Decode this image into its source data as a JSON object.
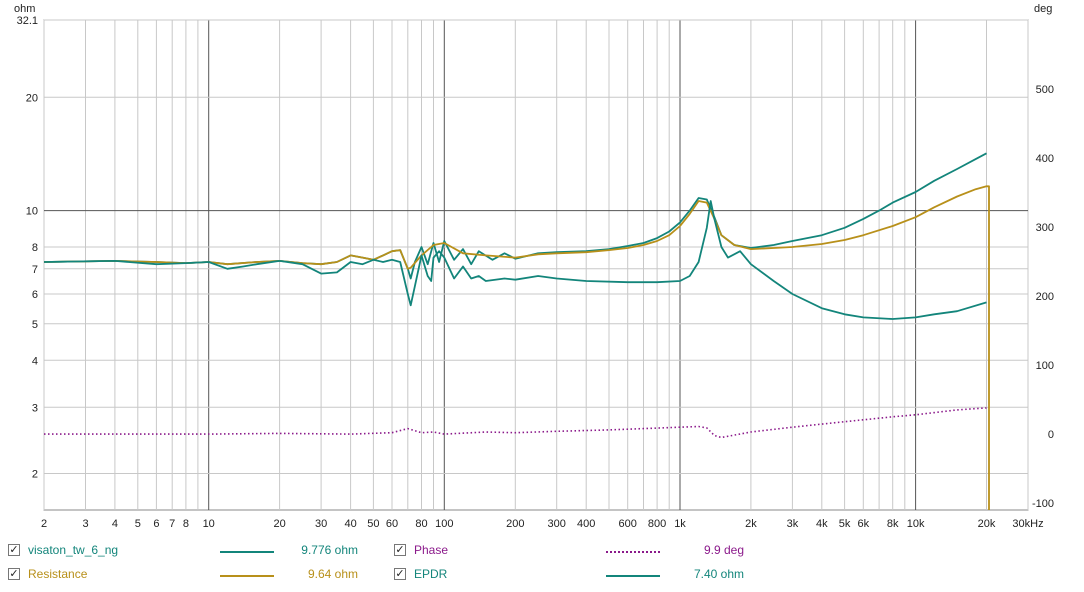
{
  "chart_data": {
    "type": "line",
    "x_scale": "log",
    "y_scale": "log",
    "x_ticks": [
      {
        "v": 2,
        "label": "2"
      },
      {
        "v": 3,
        "label": "3"
      },
      {
        "v": 4,
        "label": "4"
      },
      {
        "v": 5,
        "label": "5"
      },
      {
        "v": 6,
        "label": "6"
      },
      {
        "v": 7,
        "label": "7"
      },
      {
        "v": 8,
        "label": "8"
      },
      {
        "v": 10,
        "label": "10"
      },
      {
        "v": 20,
        "label": "20"
      },
      {
        "v": 30,
        "label": "30"
      },
      {
        "v": 40,
        "label": "40"
      },
      {
        "v": 50,
        "label": "50"
      },
      {
        "v": 60,
        "label": "60"
      },
      {
        "v": 80,
        "label": "80"
      },
      {
        "v": 100,
        "label": "100"
      },
      {
        "v": 200,
        "label": "200"
      },
      {
        "v": 300,
        "label": "300"
      },
      {
        "v": 400,
        "label": "400"
      },
      {
        "v": 600,
        "label": "600"
      },
      {
        "v": 800,
        "label": "800"
      },
      {
        "v": 1000,
        "label": "1k"
      },
      {
        "v": 2000,
        "label": "2k"
      },
      {
        "v": 3000,
        "label": "3k"
      },
      {
        "v": 4000,
        "label": "4k"
      },
      {
        "v": 5000,
        "label": "5k"
      },
      {
        "v": 6000,
        "label": "6k"
      },
      {
        "v": 8000,
        "label": "8k"
      },
      {
        "v": 10000,
        "label": "10k"
      },
      {
        "v": 20000,
        "label": "20k"
      },
      {
        "v": 30000,
        "label": "30kHz"
      }
    ],
    "x_minor": [
      2,
      3,
      4,
      5,
      6,
      7,
      8,
      9,
      10,
      20,
      30,
      40,
      50,
      60,
      70,
      80,
      90,
      100,
      200,
      300,
      400,
      500,
      600,
      700,
      800,
      900,
      1000,
      2000,
      3000,
      4000,
      5000,
      6000,
      7000,
      8000,
      9000,
      10000,
      20000,
      30000
    ],
    "x_major": [
      10,
      100,
      1000,
      10000
    ],
    "xlim": [
      2,
      30000
    ],
    "y_left": {
      "unit": "ohm",
      "lim": [
        1.6,
        32.1
      ],
      "ticks": [
        {
          "v": 32.1,
          "label": "32.1"
        },
        {
          "v": 20,
          "label": "20"
        },
        {
          "v": 10,
          "label": "10"
        },
        {
          "v": 8,
          "label": "8"
        },
        {
          "v": 7,
          "label": "7"
        },
        {
          "v": 6,
          "label": "6"
        },
        {
          "v": 5,
          "label": "5"
        },
        {
          "v": 4,
          "label": "4"
        },
        {
          "v": 3,
          "label": "3"
        },
        {
          "v": 2,
          "label": "2"
        }
      ],
      "major_lines": [
        10
      ]
    },
    "y_right": {
      "unit": "deg",
      "lim": [
        -110,
        600
      ],
      "ticks": [
        {
          "v": 500,
          "label": "500"
        },
        {
          "v": 400,
          "label": "400"
        },
        {
          "v": 300,
          "label": "300"
        },
        {
          "v": 200,
          "label": "200"
        },
        {
          "v": 100,
          "label": "100"
        },
        {
          "v": 0,
          "label": "0"
        },
        {
          "v": -100,
          "label": "-100"
        }
      ]
    },
    "grid": true,
    "series": [
      {
        "name": "visaton_tw_6_ng",
        "value": "9.776 ohm",
        "color": "#13857b",
        "style": "solid",
        "axis": "left",
        "points": [
          [
            2,
            7.3
          ],
          [
            4,
            7.35
          ],
          [
            6,
            7.3
          ],
          [
            8,
            7.25
          ],
          [
            10,
            7.3
          ],
          [
            12,
            7.2
          ],
          [
            16,
            7.3
          ],
          [
            20,
            7.35
          ],
          [
            25,
            7.25
          ],
          [
            30,
            7.2
          ],
          [
            35,
            7.3
          ],
          [
            40,
            7.6
          ],
          [
            45,
            7.5
          ],
          [
            50,
            7.4
          ],
          [
            55,
            7.6
          ],
          [
            60,
            7.8
          ],
          [
            65,
            7.85
          ],
          [
            70,
            7.0
          ],
          [
            72,
            6.6
          ],
          [
            75,
            7.3
          ],
          [
            80,
            8.0
          ],
          [
            85,
            7.2
          ],
          [
            90,
            8.2
          ],
          [
            95,
            7.3
          ],
          [
            100,
            8.3
          ],
          [
            110,
            7.4
          ],
          [
            120,
            7.9
          ],
          [
            130,
            7.2
          ],
          [
            140,
            7.8
          ],
          [
            160,
            7.4
          ],
          [
            180,
            7.7
          ],
          [
            200,
            7.45
          ],
          [
            250,
            7.7
          ],
          [
            300,
            7.75
          ],
          [
            400,
            7.8
          ],
          [
            500,
            7.9
          ],
          [
            600,
            8.05
          ],
          [
            700,
            8.2
          ],
          [
            800,
            8.45
          ],
          [
            900,
            8.8
          ],
          [
            1000,
            9.3
          ],
          [
            1100,
            10.0
          ],
          [
            1200,
            10.8
          ],
          [
            1300,
            10.7
          ],
          [
            1400,
            9.6
          ],
          [
            1500,
            8.6
          ],
          [
            1700,
            8.1
          ],
          [
            2000,
            7.95
          ],
          [
            2500,
            8.1
          ],
          [
            3000,
            8.3
          ],
          [
            4000,
            8.6
          ],
          [
            5000,
            9.0
          ],
          [
            6000,
            9.5
          ],
          [
            7000,
            10.0
          ],
          [
            8000,
            10.5
          ],
          [
            10000,
            11.2
          ],
          [
            12000,
            12.0
          ],
          [
            15000,
            12.9
          ],
          [
            18000,
            13.7
          ],
          [
            20000,
            14.2
          ]
        ]
      },
      {
        "name": "Resistance",
        "value": "9.64 ohm",
        "color": "#b8901a",
        "style": "solid",
        "axis": "left",
        "points": [
          [
            2,
            7.3
          ],
          [
            4,
            7.35
          ],
          [
            6,
            7.3
          ],
          [
            8,
            7.25
          ],
          [
            10,
            7.3
          ],
          [
            12,
            7.2
          ],
          [
            16,
            7.3
          ],
          [
            20,
            7.35
          ],
          [
            25,
            7.25
          ],
          [
            30,
            7.2
          ],
          [
            35,
            7.3
          ],
          [
            40,
            7.6
          ],
          [
            45,
            7.5
          ],
          [
            50,
            7.4
          ],
          [
            55,
            7.6
          ],
          [
            60,
            7.8
          ],
          [
            65,
            7.85
          ],
          [
            70,
            7.0
          ],
          [
            72,
            7.05
          ],
          [
            80,
            7.6
          ],
          [
            90,
            8.1
          ],
          [
            100,
            8.2
          ],
          [
            120,
            7.7
          ],
          [
            150,
            7.6
          ],
          [
            200,
            7.5
          ],
          [
            250,
            7.65
          ],
          [
            300,
            7.7
          ],
          [
            400,
            7.75
          ],
          [
            500,
            7.85
          ],
          [
            600,
            7.95
          ],
          [
            700,
            8.1
          ],
          [
            800,
            8.3
          ],
          [
            900,
            8.6
          ],
          [
            1000,
            9.1
          ],
          [
            1100,
            9.8
          ],
          [
            1200,
            10.6
          ],
          [
            1300,
            10.5
          ],
          [
            1400,
            9.5
          ],
          [
            1500,
            8.6
          ],
          [
            1700,
            8.1
          ],
          [
            2000,
            7.9
          ],
          [
            2500,
            7.95
          ],
          [
            3000,
            8.0
          ],
          [
            4000,
            8.15
          ],
          [
            5000,
            8.35
          ],
          [
            6000,
            8.6
          ],
          [
            8000,
            9.1
          ],
          [
            10000,
            9.6
          ],
          [
            12000,
            10.2
          ],
          [
            15000,
            10.9
          ],
          [
            18000,
            11.4
          ],
          [
            20000,
            11.6
          ],
          [
            20500,
            11.6
          ],
          [
            20500,
            1.6
          ]
        ]
      },
      {
        "name": "Phase",
        "value": "9.9 deg",
        "color": "#8b1a8b",
        "style": "dotted",
        "axis": "right",
        "points": [
          [
            2,
            0
          ],
          [
            10,
            0
          ],
          [
            20,
            1
          ],
          [
            40,
            0
          ],
          [
            60,
            2
          ],
          [
            70,
            8
          ],
          [
            80,
            2
          ],
          [
            90,
            3
          ],
          [
            100,
            0
          ],
          [
            150,
            3
          ],
          [
            200,
            2
          ],
          [
            300,
            4
          ],
          [
            500,
            6
          ],
          [
            700,
            8
          ],
          [
            1000,
            10
          ],
          [
            1200,
            11
          ],
          [
            1300,
            9
          ],
          [
            1400,
            -2
          ],
          [
            1500,
            -5
          ],
          [
            2000,
            3
          ],
          [
            3000,
            10
          ],
          [
            5000,
            18
          ],
          [
            8000,
            25
          ],
          [
            10000,
            28
          ],
          [
            15000,
            35
          ],
          [
            20000,
            38
          ]
        ]
      },
      {
        "name": "EPDR",
        "value": "7.40 ohm",
        "color": "#13857b",
        "style": "solid",
        "axis": "left",
        "points": [
          [
            2,
            7.3
          ],
          [
            4,
            7.35
          ],
          [
            6,
            7.2
          ],
          [
            8,
            7.25
          ],
          [
            10,
            7.3
          ],
          [
            12,
            7.0
          ],
          [
            14,
            7.1
          ],
          [
            16,
            7.2
          ],
          [
            20,
            7.35
          ],
          [
            25,
            7.2
          ],
          [
            30,
            6.8
          ],
          [
            35,
            6.85
          ],
          [
            40,
            7.3
          ],
          [
            45,
            7.2
          ],
          [
            50,
            7.4
          ],
          [
            55,
            7.3
          ],
          [
            60,
            7.4
          ],
          [
            65,
            7.3
          ],
          [
            70,
            6.0
          ],
          [
            72,
            5.6
          ],
          [
            75,
            6.3
          ],
          [
            80,
            7.6
          ],
          [
            85,
            6.7
          ],
          [
            88,
            6.5
          ],
          [
            90,
            7.5
          ],
          [
            95,
            7.8
          ],
          [
            100,
            7.5
          ],
          [
            110,
            6.6
          ],
          [
            120,
            7.1
          ],
          [
            130,
            6.6
          ],
          [
            140,
            6.7
          ],
          [
            150,
            6.5
          ],
          [
            180,
            6.6
          ],
          [
            200,
            6.55
          ],
          [
            250,
            6.7
          ],
          [
            300,
            6.6
          ],
          [
            400,
            6.5
          ],
          [
            600,
            6.45
          ],
          [
            800,
            6.45
          ],
          [
            1000,
            6.5
          ],
          [
            1100,
            6.7
          ],
          [
            1200,
            7.3
          ],
          [
            1300,
            9.0
          ],
          [
            1350,
            10.6
          ],
          [
            1400,
            9.5
          ],
          [
            1500,
            8.0
          ],
          [
            1600,
            7.5
          ],
          [
            1800,
            7.8
          ],
          [
            2000,
            7.2
          ],
          [
            2500,
            6.5
          ],
          [
            3000,
            6.0
          ],
          [
            4000,
            5.5
          ],
          [
            5000,
            5.3
          ],
          [
            6000,
            5.2
          ],
          [
            8000,
            5.15
          ],
          [
            10000,
            5.2
          ],
          [
            12000,
            5.3
          ],
          [
            15000,
            5.4
          ],
          [
            20000,
            5.7
          ]
        ]
      }
    ]
  },
  "legend": [
    {
      "label": "visaton_tw_6_ng",
      "value": "9.776 ohm",
      "checked": "✓",
      "color": "#13857b",
      "line": "solid"
    },
    {
      "label": "Resistance",
      "value": "9.64 ohm",
      "checked": "✓",
      "color": "#b8901a",
      "line": "solid"
    },
    {
      "label": "Phase",
      "value": "9.9 deg",
      "checked": "✓",
      "color": "#8b1a8b",
      "line": "dotted"
    },
    {
      "label": "EPDR",
      "value": "7.40 ohm",
      "checked": "✓",
      "color": "#13857b",
      "line": "solid"
    }
  ]
}
